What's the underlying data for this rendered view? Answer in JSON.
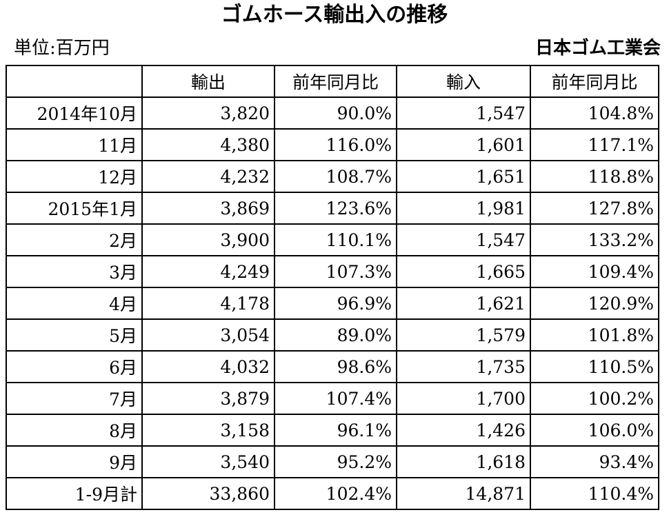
{
  "title": "ゴムホース輸出入の推移",
  "unit_label": "単位:百万円",
  "source": "日本ゴム工業会",
  "table": {
    "headers": [
      "",
      "輸出",
      "前年同月比",
      "輸入",
      "前年同月比"
    ],
    "rows": [
      [
        "2014年10月",
        "3,820",
        "90.0%",
        "1,547",
        "104.8%"
      ],
      [
        "11月",
        "4,380",
        "116.0%",
        "1,601",
        "117.1%"
      ],
      [
        "12月",
        "4,232",
        "108.7%",
        "1,651",
        "118.8%"
      ],
      [
        "2015年1月",
        "3,869",
        "123.6%",
        "1,981",
        "127.8%"
      ],
      [
        "2月",
        "3,900",
        "110.1%",
        "1,547",
        "133.2%"
      ],
      [
        "3月",
        "4,249",
        "107.3%",
        "1,665",
        "109.4%"
      ],
      [
        "4月",
        "4,178",
        "96.9%",
        "1,621",
        "120.9%"
      ],
      [
        "5月",
        "3,054",
        "89.0%",
        "1,579",
        "101.8%"
      ],
      [
        "6月",
        "4,032",
        "98.6%",
        "1,735",
        "110.5%"
      ],
      [
        "7月",
        "3,879",
        "107.4%",
        "1,700",
        "100.2%"
      ],
      [
        "8月",
        "3,158",
        "96.1%",
        "1,426",
        "106.0%"
      ],
      [
        "9月",
        "3,540",
        "95.2%",
        "1,618",
        "93.4%"
      ],
      [
        "1-9月計",
        "33,860",
        "102.4%",
        "14,871",
        "110.4%"
      ]
    ]
  }
}
